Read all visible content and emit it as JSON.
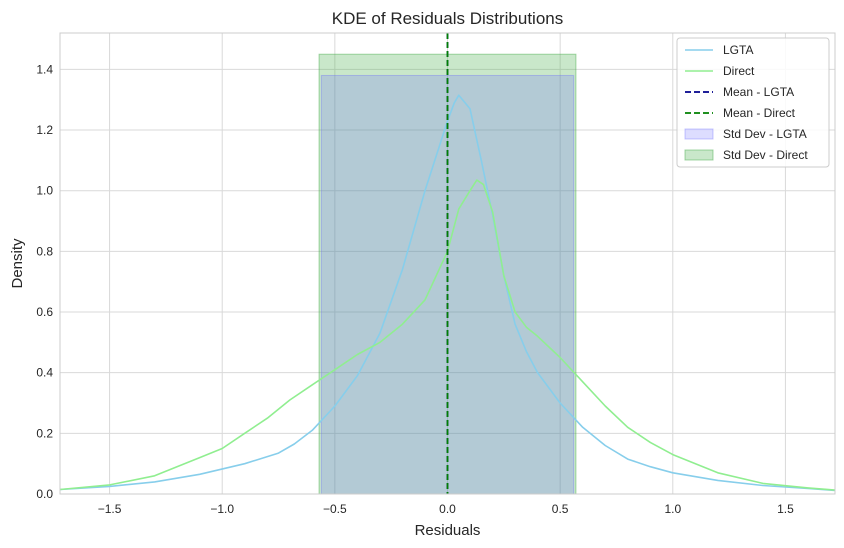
{
  "chart_data": {
    "type": "line",
    "title": "KDE of Residuals Distributions",
    "xlabel": "Residuals",
    "ylabel": "Density",
    "xlim": [
      -1.72,
      1.72
    ],
    "ylim": [
      0,
      1.52
    ],
    "grid": true,
    "legend_position": "top-right",
    "x_ticks": [
      -1.5,
      -1.0,
      -0.5,
      0.0,
      0.5,
      1.0,
      1.5
    ],
    "x_tick_labels": [
      "−1.5",
      "−1.0",
      "−0.5",
      "0.0",
      "0.5",
      "1.0",
      "1.5"
    ],
    "y_ticks": [
      0.0,
      0.2,
      0.4,
      0.6,
      0.8,
      1.0,
      1.2,
      1.4
    ],
    "y_tick_labels": [
      "0.0",
      "0.2",
      "0.4",
      "0.6",
      "0.8",
      "1.0",
      "1.2",
      "1.4"
    ],
    "series": [
      {
        "name": "LGTA",
        "kind": "line",
        "color": "#87ceeb",
        "x": [
          -1.72,
          -1.5,
          -1.3,
          -1.1,
          -0.9,
          -0.75,
          -0.68,
          -0.6,
          -0.5,
          -0.4,
          -0.3,
          -0.2,
          -0.1,
          0.0,
          0.03,
          0.05,
          0.1,
          0.15,
          0.2,
          0.25,
          0.3,
          0.35,
          0.4,
          0.5,
          0.6,
          0.7,
          0.8,
          0.9,
          1.0,
          1.2,
          1.4,
          1.6,
          1.72
        ],
        "y": [
          0.015,
          0.025,
          0.04,
          0.065,
          0.1,
          0.135,
          0.165,
          0.21,
          0.29,
          0.39,
          0.53,
          0.74,
          1.0,
          1.23,
          1.29,
          1.315,
          1.27,
          1.1,
          0.92,
          0.72,
          0.56,
          0.47,
          0.4,
          0.3,
          0.22,
          0.16,
          0.115,
          0.09,
          0.07,
          0.045,
          0.028,
          0.018,
          0.012
        ]
      },
      {
        "name": "Direct",
        "kind": "line",
        "color": "#90ee90",
        "x": [
          -1.72,
          -1.5,
          -1.3,
          -1.1,
          -1.0,
          -0.9,
          -0.8,
          -0.7,
          -0.6,
          -0.5,
          -0.4,
          -0.3,
          -0.2,
          -0.1,
          0.0,
          0.05,
          0.1,
          0.13,
          0.16,
          0.2,
          0.25,
          0.3,
          0.35,
          0.4,
          0.5,
          0.6,
          0.7,
          0.8,
          0.9,
          1.0,
          1.2,
          1.4,
          1.6,
          1.72
        ],
        "y": [
          0.015,
          0.03,
          0.06,
          0.12,
          0.15,
          0.2,
          0.25,
          0.31,
          0.36,
          0.41,
          0.46,
          0.5,
          0.56,
          0.64,
          0.8,
          0.94,
          1.0,
          1.035,
          1.02,
          0.93,
          0.72,
          0.6,
          0.55,
          0.52,
          0.45,
          0.37,
          0.29,
          0.22,
          0.17,
          0.13,
          0.07,
          0.035,
          0.02,
          0.013
        ]
      },
      {
        "name": "Mean - LGTA",
        "kind": "vline",
        "color": "#00008b",
        "x": 0.0
      },
      {
        "name": "Mean - Direct",
        "kind": "vline",
        "color": "#008000",
        "x": 0.0
      },
      {
        "name": "Std Dev - LGTA",
        "kind": "span",
        "color": "#6666ff",
        "x0": -0.56,
        "x1": 0.56,
        "height": 1.38
      },
      {
        "name": "Std Dev - Direct",
        "kind": "span",
        "color": "#4caf50",
        "x0": -0.57,
        "x1": 0.57,
        "height": 1.45
      }
    ]
  }
}
